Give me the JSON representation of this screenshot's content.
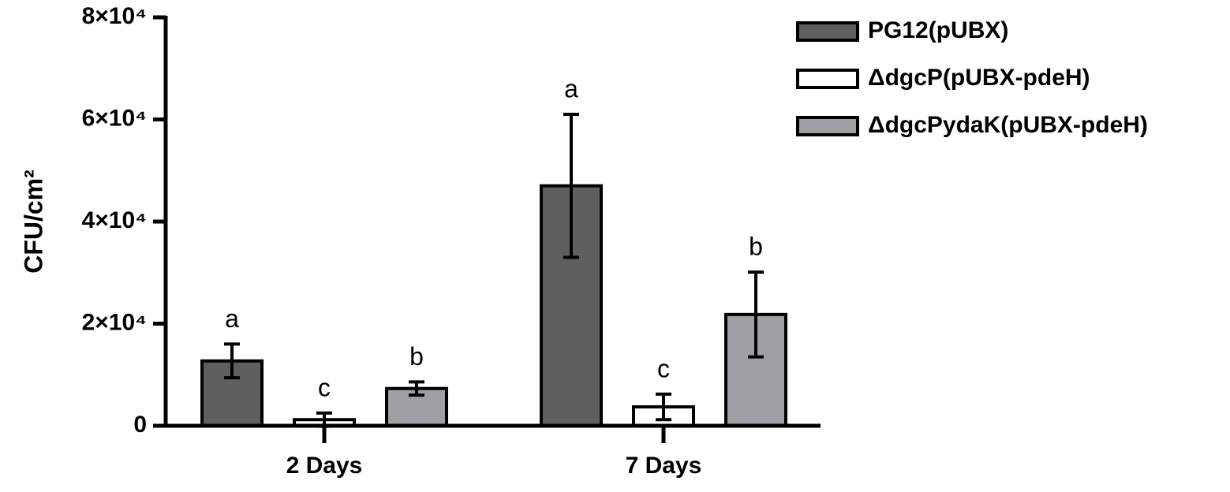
{
  "chart_data": {
    "type": "bar",
    "y_label": "CFU/cm²",
    "categories": [
      "2 Days",
      "7 Days"
    ],
    "series": [
      {
        "name": "PG12(pUBX)",
        "color": "#5f5f5f",
        "values": [
          12700,
          47000
        ],
        "errors": [
          3300,
          14000
        ],
        "letters": [
          "a",
          "a"
        ]
      },
      {
        "name": "ΔdgcP(pUBX-pdeH)",
        "color": "#ffffff",
        "values": [
          1200,
          3700
        ],
        "errors": [
          1300,
          2500
        ],
        "letters": [
          "c",
          "c"
        ]
      },
      {
        "name": "ΔdgcPydaK(pUBX-pdeH)",
        "color": "#a0a0a4",
        "values": [
          7300,
          21800
        ],
        "errors": [
          1300,
          8300
        ],
        "letters": [
          "b",
          "b"
        ]
      }
    ],
    "ylim": [
      0,
      80000
    ],
    "yticks": [
      0,
      {
        "value": 20000,
        "label": "2×10⁴"
      },
      {
        "value": 40000,
        "label": "4×10⁴"
      },
      {
        "value": 60000,
        "label": "6×10⁴"
      },
      {
        "value": 80000,
        "label": "8×10⁴"
      }
    ]
  }
}
